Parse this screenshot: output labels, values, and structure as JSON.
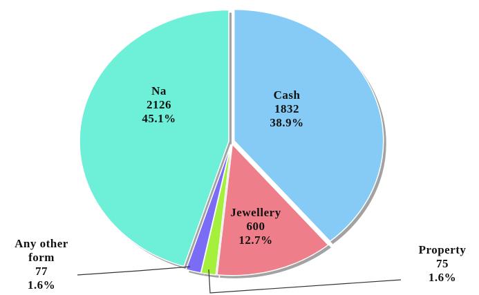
{
  "chart_data": {
    "type": "pie",
    "categories": [
      "Cash",
      "Jewellery",
      "Property",
      "Any other form",
      "Na"
    ],
    "values": [
      1832,
      600,
      75,
      77,
      2126
    ],
    "percent_labels": [
      "38.9%",
      "12.7%",
      "1.6%",
      "1.6%",
      "45.1%"
    ],
    "colors": [
      "#85cbf5",
      "#ee7f8a",
      "#a4f03c",
      "#7b6cf5",
      "#6eefd8"
    ]
  }
}
